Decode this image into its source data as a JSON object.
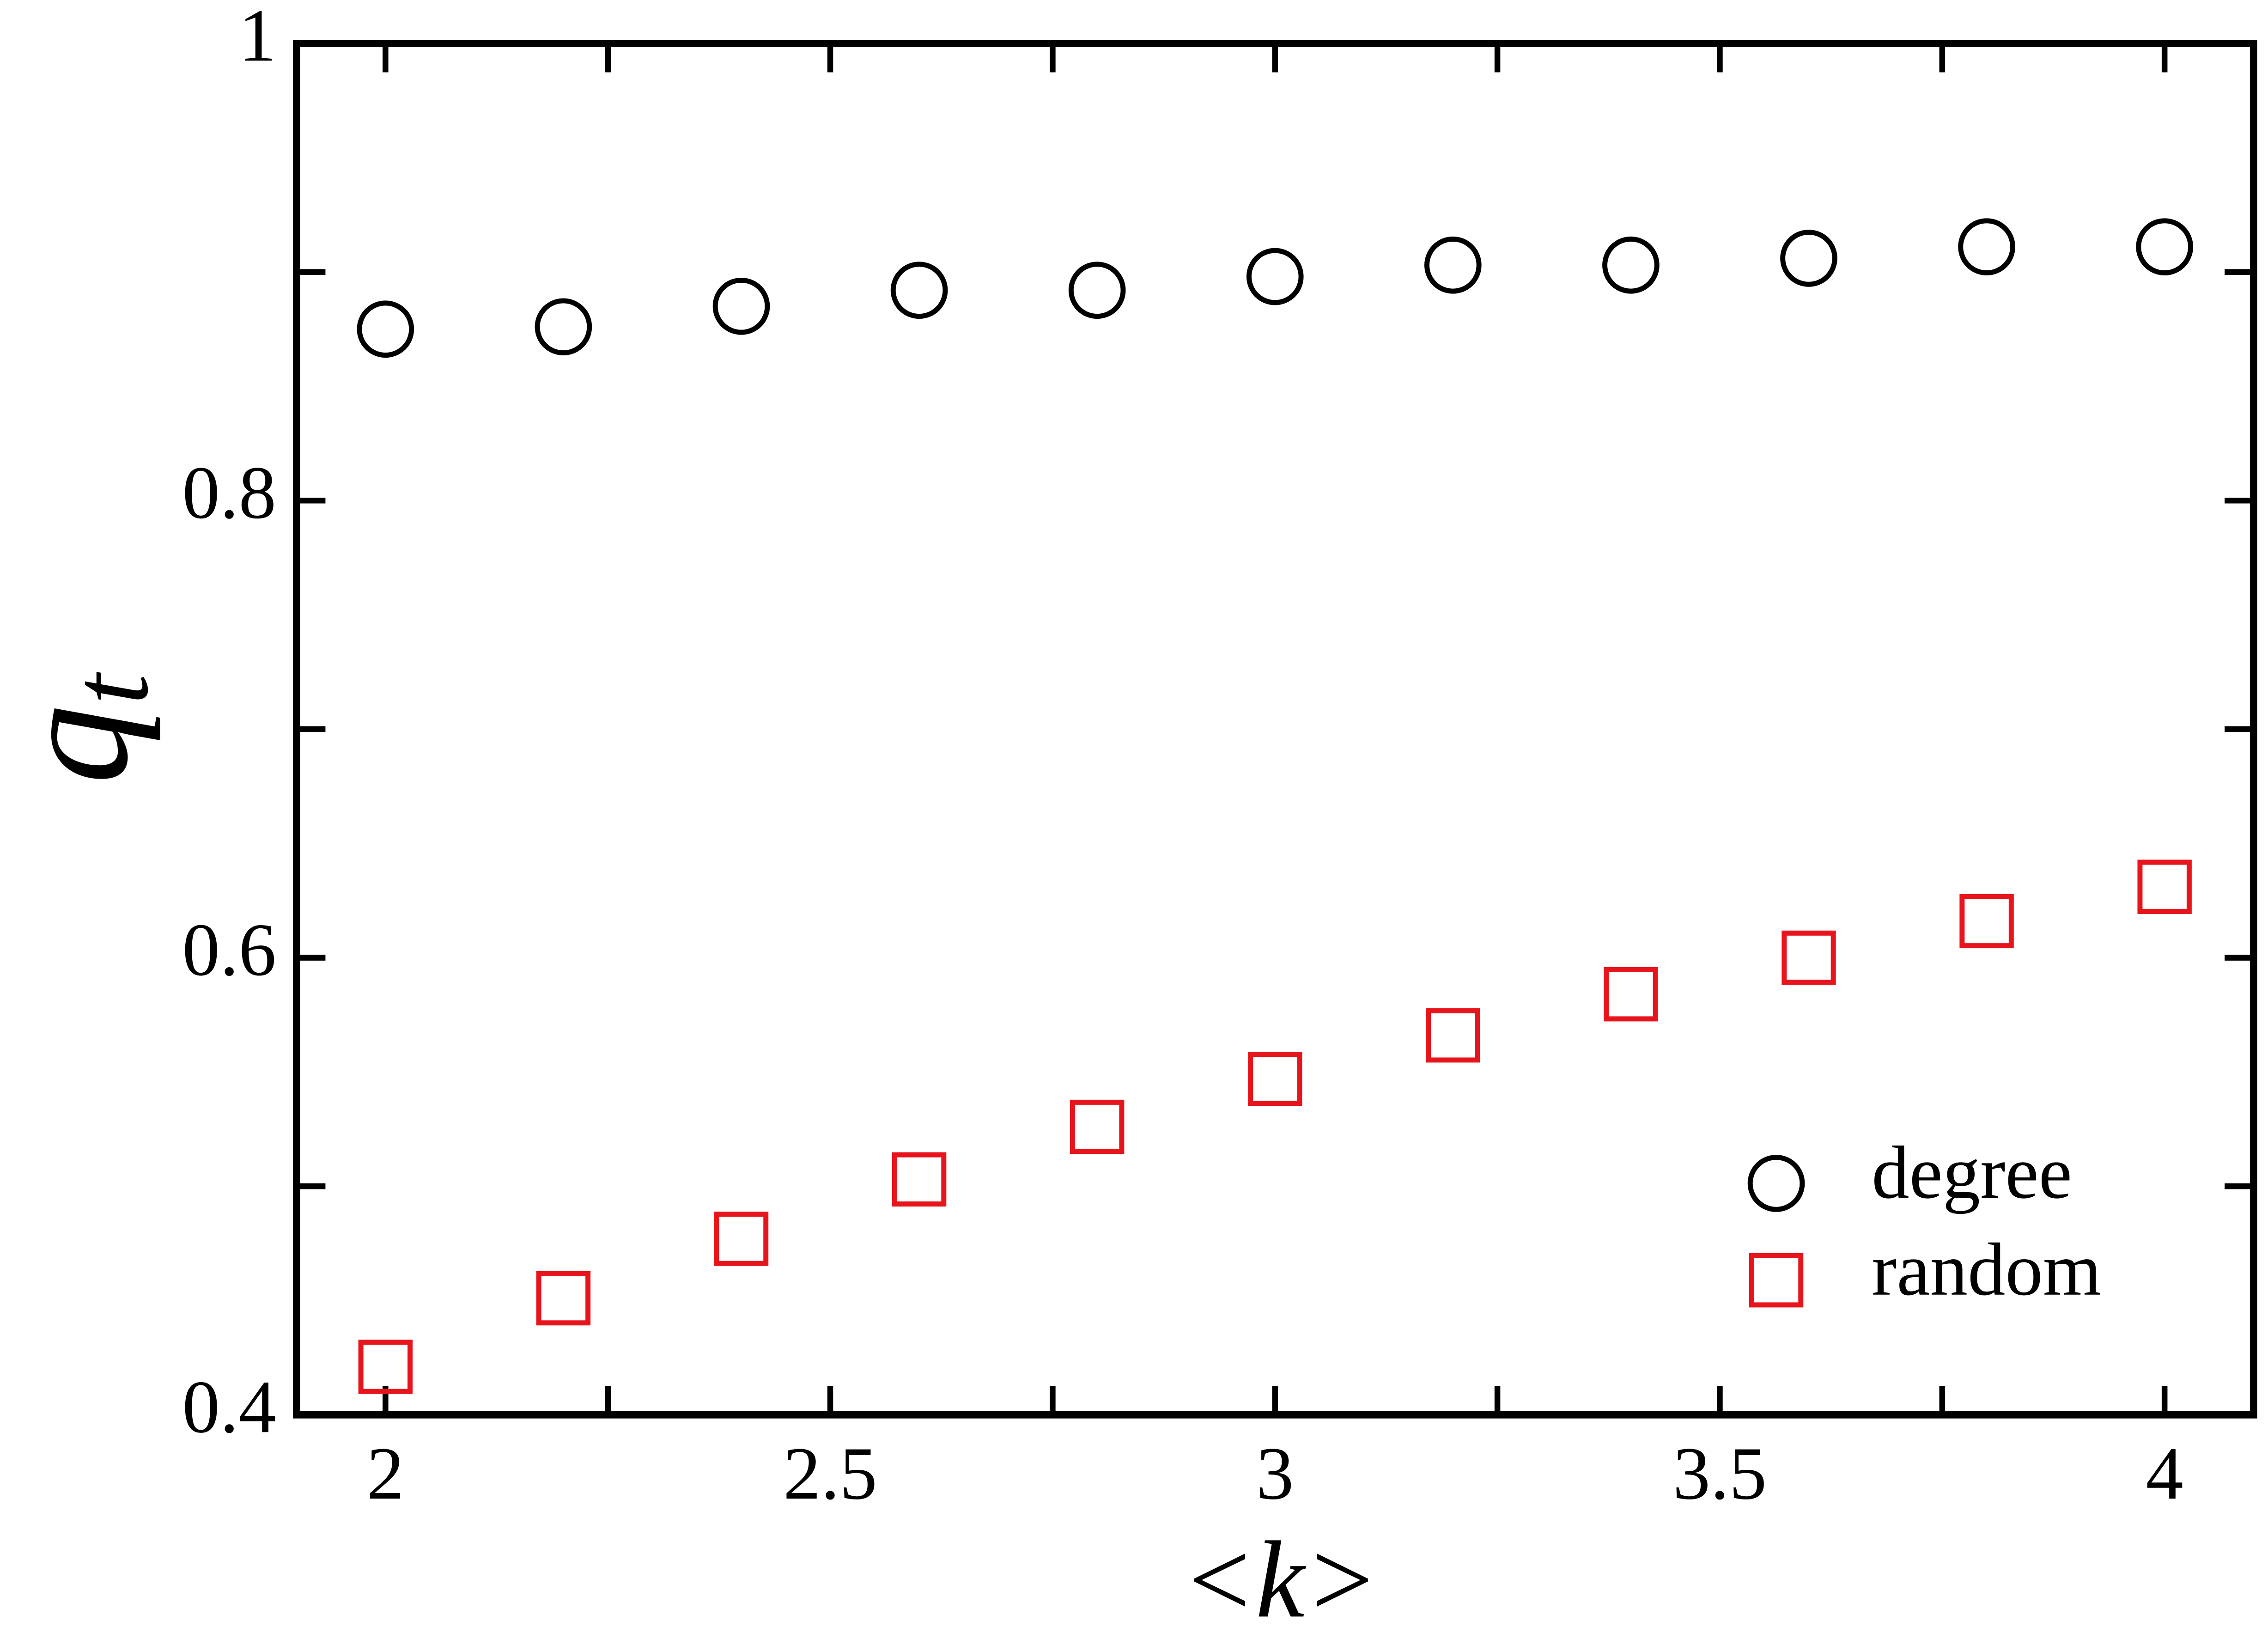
{
  "chart_data": {
    "type": "scatter",
    "xlabel": "<k>",
    "ylabel": {
      "text": "q",
      "subscript": "t"
    },
    "xlim": [
      1.9,
      4.1
    ],
    "ylim": [
      0.4,
      1
    ],
    "xticks": [
      2,
      2.5,
      3,
      3.5,
      4
    ],
    "yticks": [
      0.4,
      0.6,
      0.8,
      1
    ],
    "xminor": [
      2.25,
      2.75,
      3.25,
      3.75
    ],
    "yminor": [
      0.5,
      0.7,
      0.9
    ],
    "legend": "lower right",
    "series": [
      {
        "name": "degree",
        "marker": "circle",
        "color": "#000000",
        "x": [
          2,
          2.2,
          2.4,
          2.6,
          2.8,
          3,
          3.2,
          3.4,
          3.6,
          3.8,
          4
        ],
        "values": [
          0.875,
          0.876,
          0.885,
          0.892,
          0.892,
          0.898,
          0.903,
          0.903,
          0.906,
          0.911,
          0.911
        ]
      },
      {
        "name": "random",
        "marker": "square",
        "color": "#e8141c",
        "x": [
          2,
          2.2,
          2.4,
          2.6,
          2.8,
          3,
          3.2,
          3.4,
          3.6,
          3.8,
          4
        ],
        "values": [
          0.421,
          0.451,
          0.477,
          0.503,
          0.526,
          0.547,
          0.566,
          0.584,
          0.6,
          0.616,
          0.631
        ]
      }
    ]
  }
}
